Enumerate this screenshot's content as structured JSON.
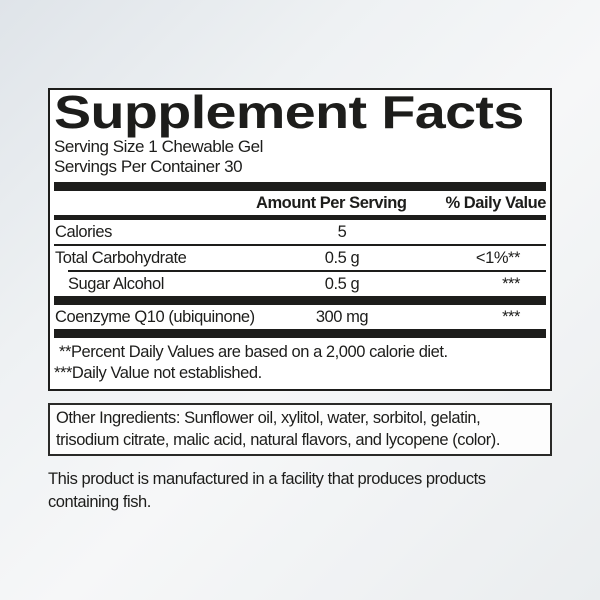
{
  "label": {
    "title": "Supplement Facts",
    "serving_size": "Serving Size 1 Chewable Gel",
    "servings_per_container": "Servings Per Container 30",
    "header": {
      "amount": "Amount Per Serving",
      "daily_value": "% Daily Value"
    },
    "rows": [
      {
        "name": "Calories",
        "amount": "5",
        "daily_value": ""
      },
      {
        "name": "Total Carbohydrate",
        "amount": "0.5 g",
        "daily_value": "<1%**"
      },
      {
        "name": "Sugar Alcohol",
        "amount": "0.5 g",
        "daily_value": "***",
        "indent": true
      },
      {
        "name": "Coenzyme Q10 (ubiquinone)",
        "amount": "300 mg",
        "daily_value": "***"
      }
    ],
    "footnotes": [
      "**Percent Daily Values are based on a 2,000 calorie diet.",
      "***Daily Value not established."
    ]
  },
  "other_ingredients": {
    "lines": [
      "Other Ingredients: Sunflower oil, xylitol, water, sorbitol, gelatin,",
      "trisodium citrate, malic acid, natural flavors, and lycopene (color)."
    ]
  },
  "disclaimer": {
    "lines": [
      "This product is manufactured in a facility that produces products",
      "containing fish."
    ]
  },
  "colors": {
    "text": "#1d1d1b",
    "bar": "#1d1d1b",
    "label_background": "#ffffff",
    "page_background_top": "#dfe4e9",
    "page_background_bottom": "#eaedef"
  }
}
